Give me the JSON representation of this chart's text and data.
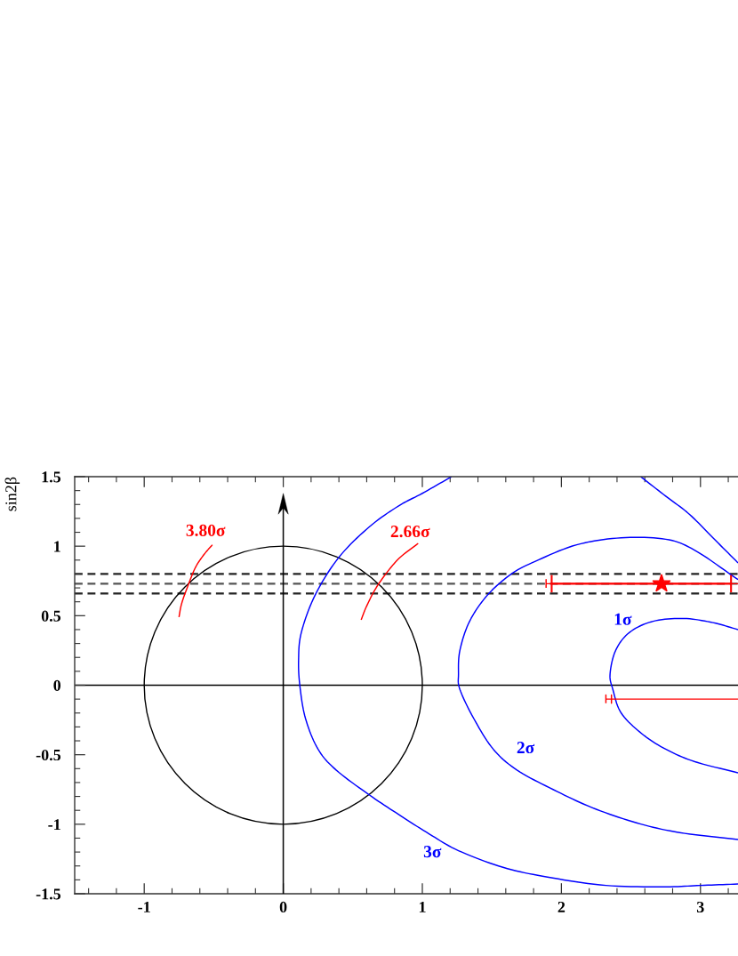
{
  "chart_data": {
    "type": "line",
    "ylabel": "sin2β",
    "xlim": [
      -1.5,
      3.27
    ],
    "ylim": [
      -1.5,
      1.5
    ],
    "xticks": [
      {
        "value": -1.4,
        "label": null
      },
      {
        "value": -1.2,
        "label": null
      },
      -1,
      {
        "value": -0.8,
        "label": null
      },
      {
        "value": -0.6,
        "label": null
      },
      {
        "value": -0.4,
        "label": null
      },
      {
        "value": -0.2,
        "label": null
      },
      0,
      {
        "value": 0.2,
        "label": null
      },
      {
        "value": 0.4,
        "label": null
      },
      {
        "value": 0.6,
        "label": null
      },
      {
        "value": 0.8,
        "label": null
      },
      1,
      {
        "value": 1.2,
        "label": null
      },
      {
        "value": 1.4,
        "label": null
      },
      {
        "value": 1.6,
        "label": null
      },
      {
        "value": 1.8,
        "label": null
      },
      2,
      {
        "value": 2.2,
        "label": null
      },
      {
        "value": 2.4,
        "label": null
      },
      {
        "value": 2.6,
        "label": null
      },
      {
        "value": 2.8,
        "label": null
      },
      3,
      {
        "value": 3.2,
        "label": null
      }
    ],
    "yticks": [
      -1.5,
      {
        "value": -1.4,
        "label": null
      },
      {
        "value": -1.3,
        "label": null
      },
      {
        "value": -1.2,
        "label": null
      },
      {
        "value": -1.1,
        "label": null
      },
      -1,
      {
        "value": -0.9,
        "label": null
      },
      {
        "value": -0.8,
        "label": null
      },
      {
        "value": -0.7,
        "label": null
      },
      {
        "value": -0.6,
        "label": null
      },
      -0.5,
      {
        "value": -0.4,
        "label": null
      },
      {
        "value": -0.3,
        "label": null
      },
      {
        "value": -0.2,
        "label": null
      },
      {
        "value": -0.1,
        "label": null
      },
      0,
      {
        "value": 0.1,
        "label": null
      },
      {
        "value": 0.2,
        "label": null
      },
      {
        "value": 0.3,
        "label": null
      },
      {
        "value": 0.4,
        "label": null
      },
      0.5,
      {
        "value": 0.6,
        "label": null
      },
      {
        "value": 0.7,
        "label": null
      },
      {
        "value": 0.8,
        "label": null
      },
      {
        "value": 0.9,
        "label": null
      },
      1,
      {
        "value": 1.1,
        "label": null
      },
      {
        "value": 1.2,
        "label": null
      },
      {
        "value": 1.3,
        "label": null
      },
      {
        "value": 1.4,
        "label": null
      },
      1.5
    ],
    "ref_lines": [
      {
        "axis": "y",
        "value": 0,
        "color": "#000000"
      },
      {
        "axis": "y",
        "value": 0.8,
        "color": "#222222",
        "line_style": "dashed"
      },
      {
        "axis": "y",
        "value": 0.73,
        "color": "#555555",
        "line_style": "dashed"
      },
      {
        "axis": "y",
        "value": 0.66,
        "color": "#222222",
        "line_style": "dashed"
      }
    ],
    "series": [
      {
        "name": "3σ",
        "color": "#0000ff",
        "x": [
          1.21,
          1.0,
          0.83,
          0.62,
          0.4,
          0.23,
          0.13,
          0.11,
          0.12,
          0.16,
          0.25,
          0.38,
          0.62,
          0.83,
          1.05,
          1.26,
          1.58,
          1.9,
          2.32,
          2.75,
          3.0,
          3.27
        ],
        "values": [
          1.5,
          1.38,
          1.29,
          1.14,
          0.92,
          0.65,
          0.38,
          0.18,
          -0.01,
          -0.24,
          -0.46,
          -0.61,
          -0.79,
          -0.93,
          -1.07,
          -1.19,
          -1.31,
          -1.38,
          -1.44,
          -1.45,
          -1.44,
          -1.43
        ]
      },
      {
        "color": "#0000ff",
        "x": [
          2.57,
          2.75,
          2.92,
          3.09,
          3.27
        ],
        "values": [
          1.5,
          1.36,
          1.23,
          1.06,
          0.88
        ]
      },
      {
        "name": "2σ",
        "color": "#0000ff",
        "x": [
          3.27,
          2.96,
          2.75,
          2.43,
          2.11,
          1.81,
          1.64,
          1.47,
          1.34,
          1.27,
          1.26,
          1.27,
          1.37,
          1.51,
          1.68,
          1.94,
          2.22,
          2.54,
          2.85,
          3.27
        ],
        "values": [
          0.76,
          0.97,
          1.05,
          1.06,
          1.01,
          0.89,
          0.8,
          0.65,
          0.46,
          0.25,
          0.08,
          -0.03,
          -0.24,
          -0.46,
          -0.61,
          -0.75,
          -0.88,
          -0.99,
          -1.06,
          -1.11
        ]
      },
      {
        "name": "1σ",
        "color": "#0000ff",
        "x": [
          3.27,
          3.09,
          2.88,
          2.66,
          2.49,
          2.39,
          2.35,
          2.37,
          2.43,
          2.58,
          2.75,
          2.96,
          3.27
        ],
        "values": [
          0.4,
          0.45,
          0.48,
          0.46,
          0.38,
          0.25,
          0.08,
          -0.03,
          -0.2,
          -0.35,
          -0.46,
          -0.55,
          -0.63
        ]
      },
      {
        "name": "3.80σ",
        "color": "#ff0000",
        "x": [
          -0.75,
          -0.73,
          -0.68,
          -0.63,
          -0.57,
          -0.51
        ],
        "values": [
          0.49,
          0.59,
          0.73,
          0.85,
          0.94,
          1.01
        ]
      },
      {
        "name": "2.66σ",
        "color": "#ff0000",
        "x": [
          0.56,
          0.6,
          0.68,
          0.82,
          0.97
        ],
        "values": [
          0.47,
          0.57,
          0.72,
          0.9,
          1.02
        ]
      },
      {
        "color": "#ff0000",
        "x": [
          1.89,
          1.89,
          1.89,
          3.27
        ],
        "values": [
          0.7,
          0.76,
          0.73,
          0.73
        ]
      },
      {
        "color": "#ff0000",
        "x": [
          2.32,
          2.32,
          2.32,
          2.36,
          2.36,
          2.36,
          2.36,
          3.27
        ],
        "values": [
          -0.13,
          -0.07,
          -0.1,
          -0.1,
          -0.13,
          -0.07,
          -0.1,
          -0.1
        ]
      },
      {
        "type": "scatter",
        "color": "#ff0000",
        "marker": "star",
        "x": [
          2.72
        ],
        "values": [
          0.73
        ],
        "xerrors": [
          [
            1.93,
            3.22
          ]
        ]
      }
    ]
  }
}
